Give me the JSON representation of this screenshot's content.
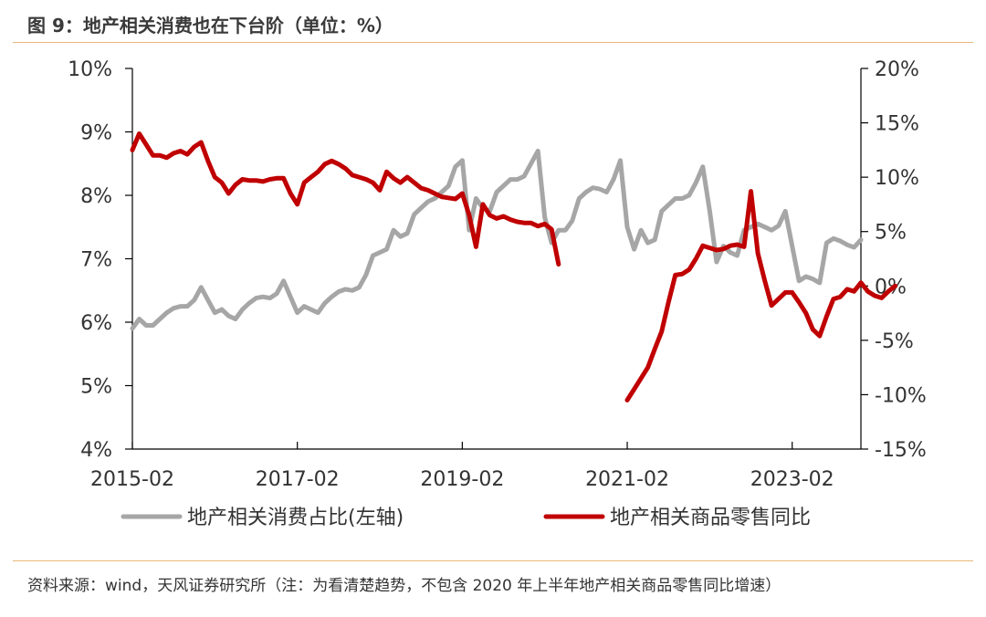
{
  "title": "图 9：地产相关消费也在下台阶（单位：%）",
  "source": "资料来源：wind，天风证券研究所（注：为看清楚趋势，不包含 2020 年上半年地产相关商品零售同比增速）",
  "chart_data": {
    "type": "line",
    "x_ticks": [
      "2015-02",
      "2017-02",
      "2019-02",
      "2021-02",
      "2023-02"
    ],
    "y_left_ticks": [
      "4%",
      "5%",
      "6%",
      "7%",
      "8%",
      "9%",
      "10%"
    ],
    "y_right_ticks": [
      "-15%",
      "-10%",
      "-5%",
      "0%",
      "5%",
      "10%",
      "15%",
      "20%"
    ],
    "y_left_range": [
      4,
      10
    ],
    "y_right_range": [
      -15,
      20
    ],
    "x_start": "2015-02",
    "x_end": "2023-12",
    "legend_position": "bottom",
    "grid": false,
    "series": [
      {
        "name": "地产相关消费占比(左轴)",
        "axis": "left",
        "color": "#a6a6a6",
        "values": [
          5.9,
          6.05,
          5.95,
          5.95,
          6.05,
          6.15,
          6.22,
          6.25,
          6.25,
          6.35,
          6.55,
          6.35,
          6.15,
          6.2,
          6.1,
          6.05,
          6.2,
          6.3,
          6.38,
          6.4,
          6.38,
          6.45,
          6.65,
          6.4,
          6.15,
          6.25,
          6.2,
          6.15,
          6.3,
          6.4,
          6.48,
          6.52,
          6.5,
          6.55,
          6.75,
          7.05,
          7.1,
          7.15,
          7.45,
          7.35,
          7.4,
          7.7,
          7.8,
          7.9,
          7.95,
          8.05,
          8.15,
          8.45,
          8.55,
          7.45,
          7.95,
          7.8,
          7.75,
          8.05,
          8.15,
          8.25,
          8.25,
          8.3,
          8.5,
          8.7,
          7.65,
          7.25,
          7.45,
          7.45,
          7.6,
          7.95,
          8.05,
          8.12,
          8.1,
          8.05,
          8.25,
          8.55,
          7.5,
          7.15,
          7.45,
          7.25,
          7.3,
          7.75,
          7.85,
          7.95,
          7.95,
          8.0,
          8.2,
          8.45,
          7.75,
          6.95,
          7.2,
          7.1,
          7.05,
          7.45,
          7.5,
          7.55,
          7.5,
          7.45,
          7.52,
          7.75,
          7.2,
          6.65,
          6.72,
          6.68,
          6.62,
          7.25,
          7.32,
          7.28,
          7.22,
          7.18,
          7.3
        ]
      },
      {
        "name": "地产相关商品零售同比",
        "axis": "right",
        "color": "#c00000",
        "values": [
          12.5,
          14,
          13,
          12,
          12,
          11.8,
          12.2,
          12.4,
          12.1,
          12.8,
          13.2,
          11.5,
          10,
          9.5,
          8.5,
          9.3,
          9.8,
          9.7,
          9.7,
          9.6,
          9.8,
          9.9,
          9.9,
          8.5,
          7.5,
          9.5,
          10,
          10.5,
          11.2,
          11.5,
          11.2,
          10.8,
          10.2,
          10,
          9.8,
          9.5,
          8.8,
          10.5,
          9.9,
          9.5,
          10,
          9.5,
          9.0,
          8.8,
          8.5,
          8.2,
          8.1,
          8.0,
          8.5,
          6.5,
          3.6,
          7.5,
          6.5,
          6.2,
          6.4,
          6.1,
          5.9,
          5.8,
          5.8,
          5.5,
          5.7,
          5.2,
          2.0,
          null,
          null,
          null,
          null,
          null,
          null,
          null,
          null,
          null,
          -10.5,
          -9.5,
          -8.5,
          -7.5,
          -5.8,
          -4.2,
          -1.5,
          1.0,
          1.1,
          1.5,
          2.5,
          3.7,
          3.5,
          3.3,
          3.4,
          3.7,
          3.8,
          3.6,
          8.7,
          3.0,
          0.5,
          -1.8,
          -1.2,
          -0.6,
          -0.6,
          -1.5,
          -2.5,
          -4.0,
          -4.6,
          -2.8,
          -1.2,
          -1.0,
          -0.3,
          -0.5,
          0.3,
          -0.5,
          -0.9,
          -1.1,
          -0.5,
          0.0
        ]
      }
    ]
  }
}
